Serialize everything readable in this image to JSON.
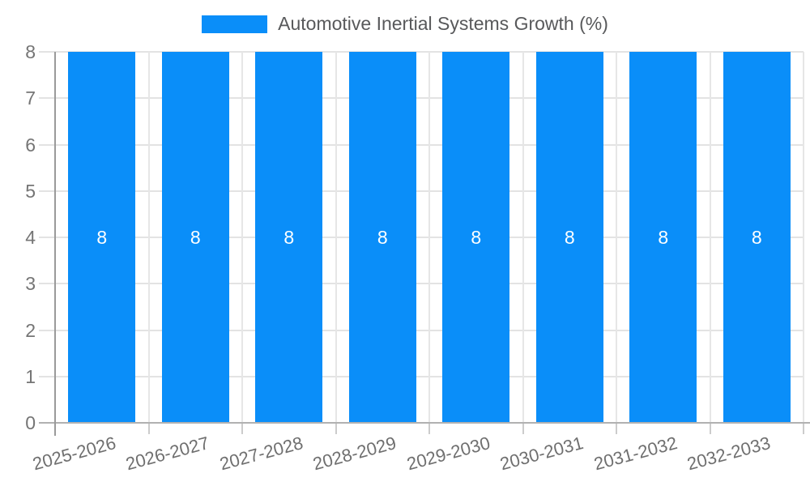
{
  "legend": {
    "label": "Automotive Inertial Systems Growth (%)",
    "swatch_color": "#0a8ef9"
  },
  "chart_data": {
    "type": "bar",
    "title": "Automotive Inertial Systems Growth (%)",
    "categories": [
      "2025-2026",
      "2026-2027",
      "2027-2028",
      "2028-2029",
      "2029-2030",
      "2030-2031",
      "2031-2032",
      "2032-2033"
    ],
    "values": [
      8,
      8,
      8,
      8,
      8,
      8,
      8,
      8
    ],
    "bar_labels": [
      "8",
      "8",
      "8",
      "8",
      "8",
      "8",
      "8",
      "8"
    ],
    "xlabel": "",
    "ylabel": "",
    "ylim": [
      0,
      8
    ],
    "yticks": [
      0,
      1,
      2,
      3,
      4,
      5,
      6,
      7,
      8
    ],
    "grid": true,
    "legend_position": "top",
    "bar_color": "#0a8ef9",
    "value_label_color": "#ffffff",
    "axis_label_color": "#757575",
    "gridline_color": "#e3e3e3"
  }
}
